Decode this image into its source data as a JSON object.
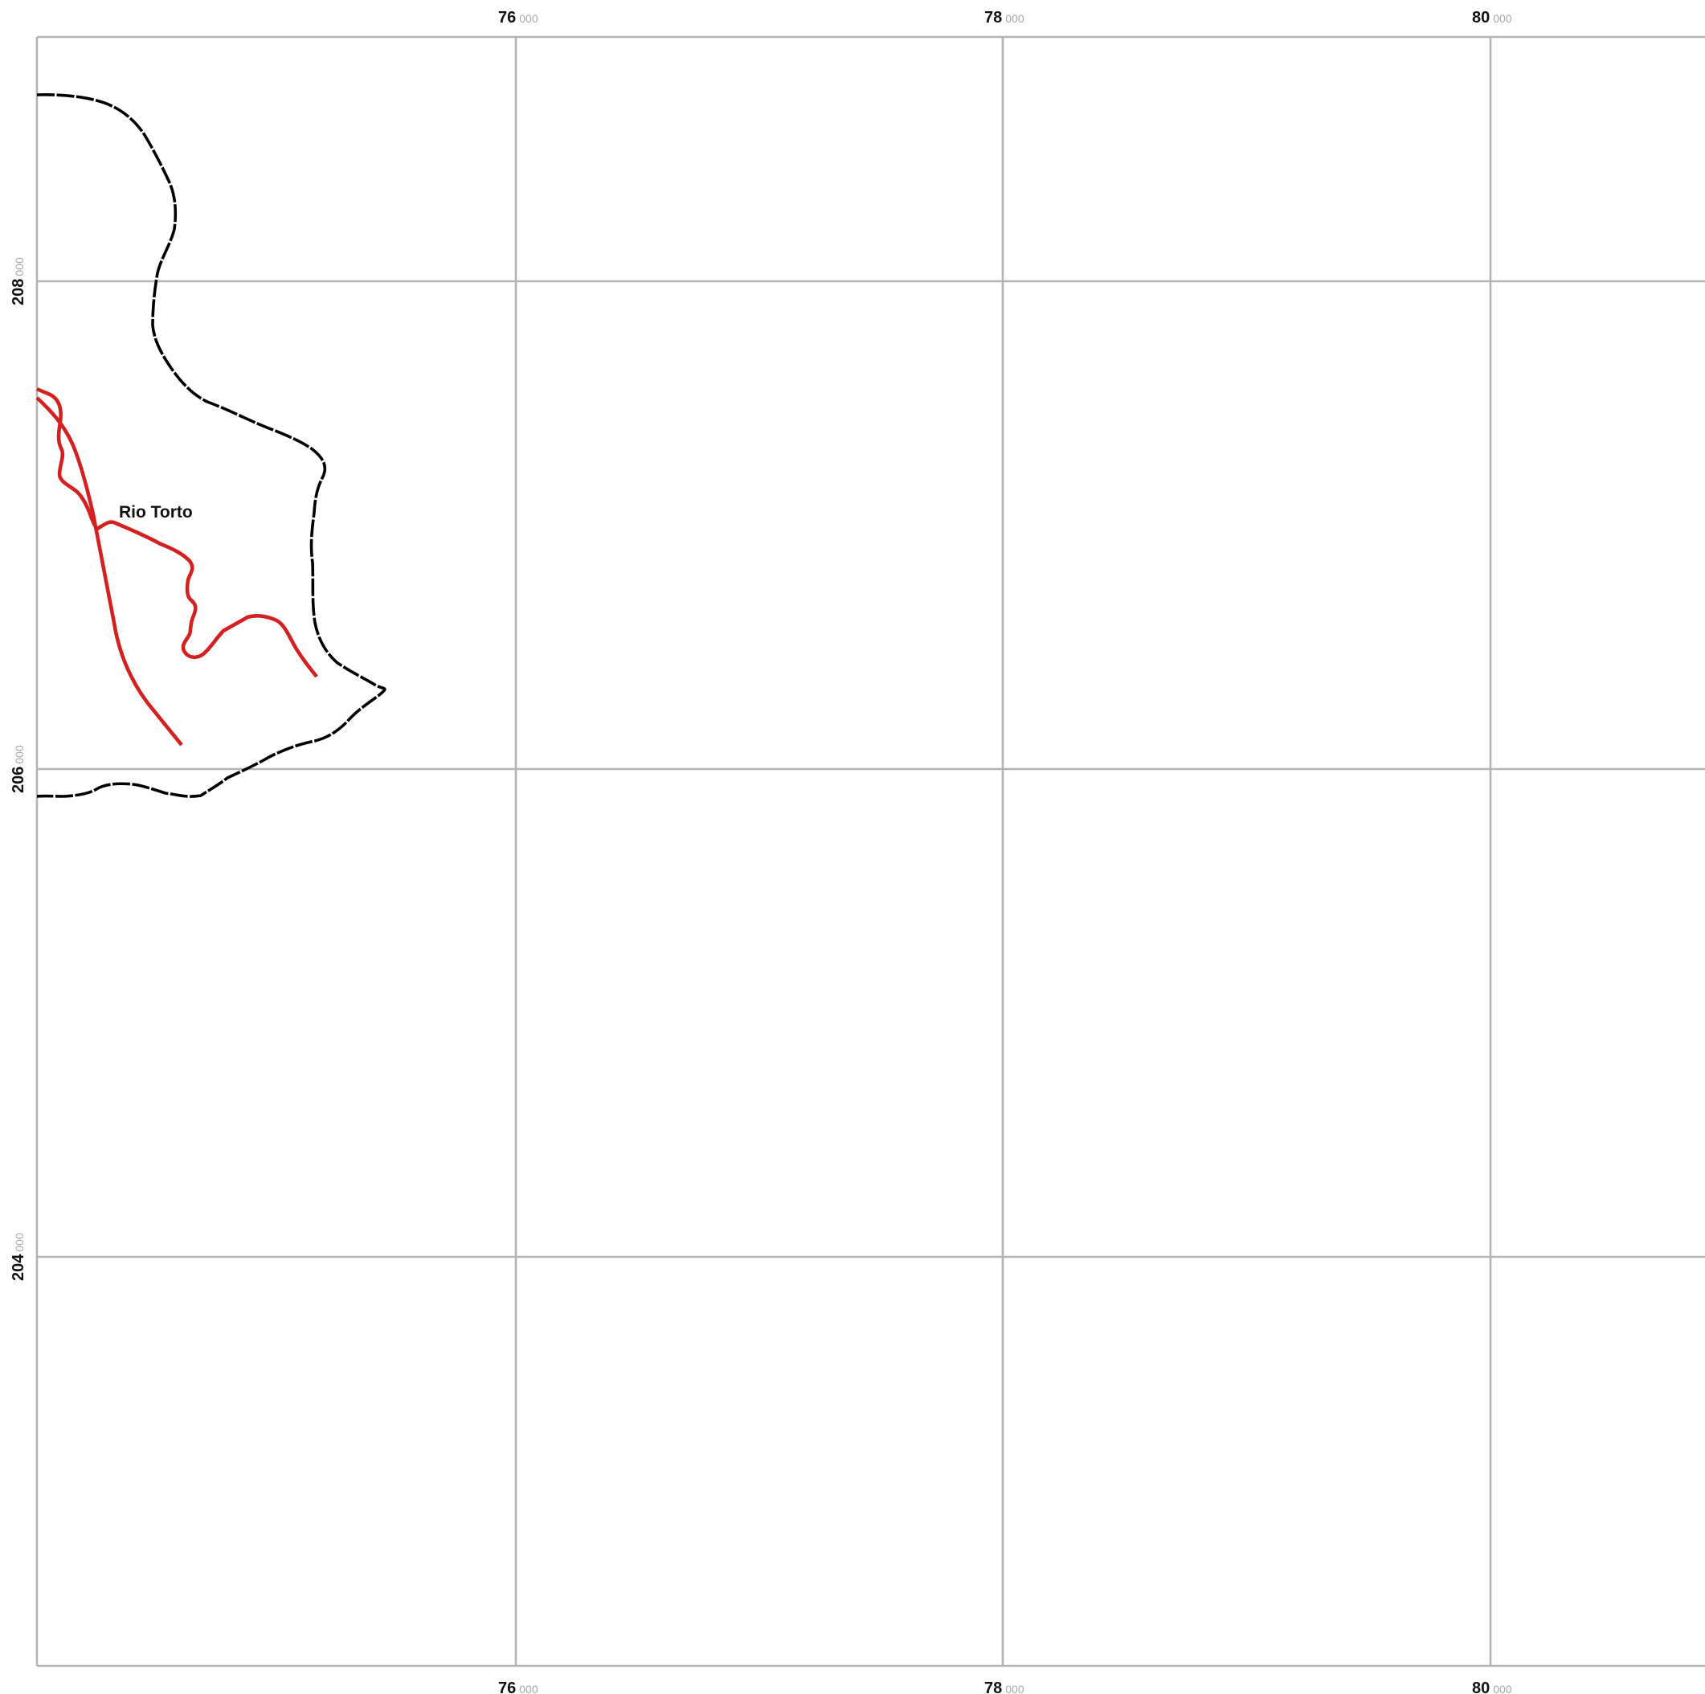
{
  "map": {
    "x_ticks": [
      {
        "major": "76",
        "minor": "000"
      },
      {
        "major": "78",
        "minor": "000"
      },
      {
        "major": "80",
        "minor": "000"
      }
    ],
    "y_ticks": [
      {
        "major": "208",
        "minor": "000"
      },
      {
        "major": "206",
        "minor": "000"
      },
      {
        "major": "204",
        "minor": "000"
      }
    ],
    "labels": {
      "river_name": "Rio Torto"
    },
    "colors": {
      "grid": "#b4b4b4",
      "boundary": "#000000",
      "river": "#d42020",
      "tick_minor": "#a6a6a6"
    }
  }
}
